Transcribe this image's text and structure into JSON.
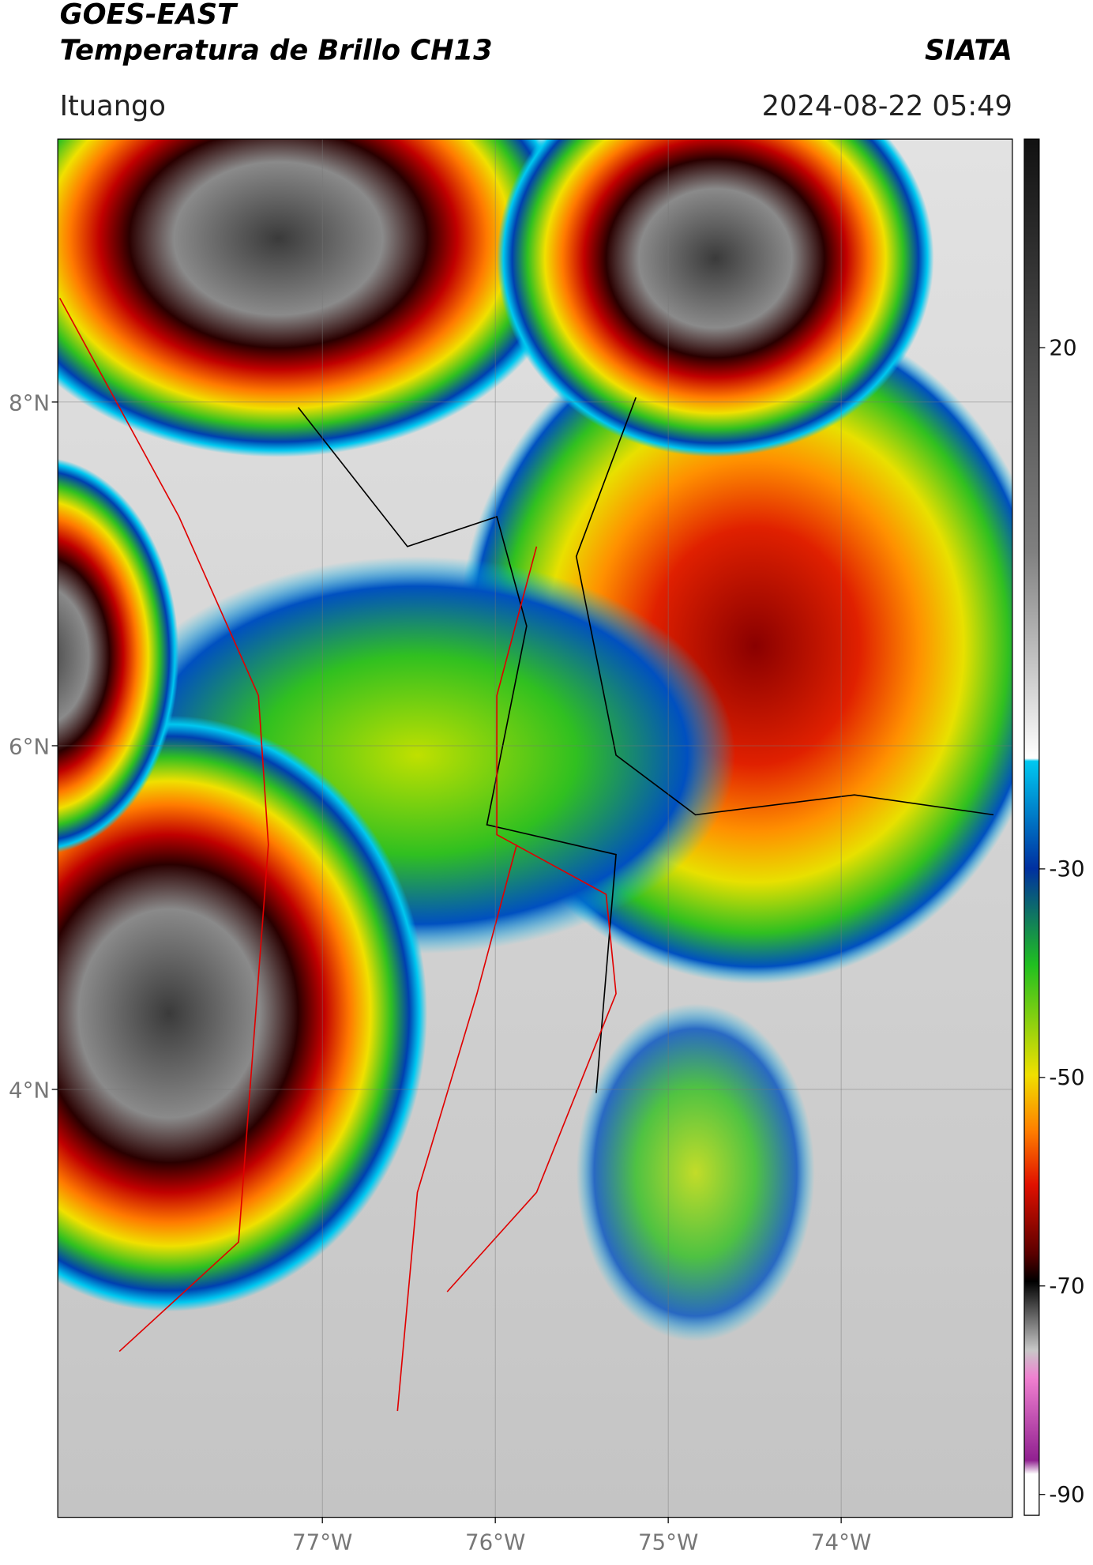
{
  "header": {
    "title_line1": "GOES-EAST",
    "title_line2": "Temperatura de Brillo CH13",
    "org": "SIATA",
    "location": "Ituango",
    "datetime": "2024-08-22 05:49"
  },
  "map": {
    "lon_range": [
      -78.53,
      -73.01
    ],
    "lat_range": [
      1.51,
      9.53
    ],
    "lat_ticks": [
      {
        "value": 8,
        "label": "8°N"
      },
      {
        "value": 6,
        "label": "6°N"
      },
      {
        "value": 4,
        "label": "4°N"
      }
    ],
    "lon_ticks": [
      {
        "value": -77,
        "label": "77°W"
      },
      {
        "value": -76,
        "label": "76°W"
      },
      {
        "value": -75,
        "label": "75°W"
      },
      {
        "value": -74,
        "label": "74°W"
      }
    ]
  },
  "colorbar": {
    "range": [
      -92,
      40
    ],
    "ticks": [
      20,
      -30,
      -50,
      -70,
      -90
    ]
  }
}
